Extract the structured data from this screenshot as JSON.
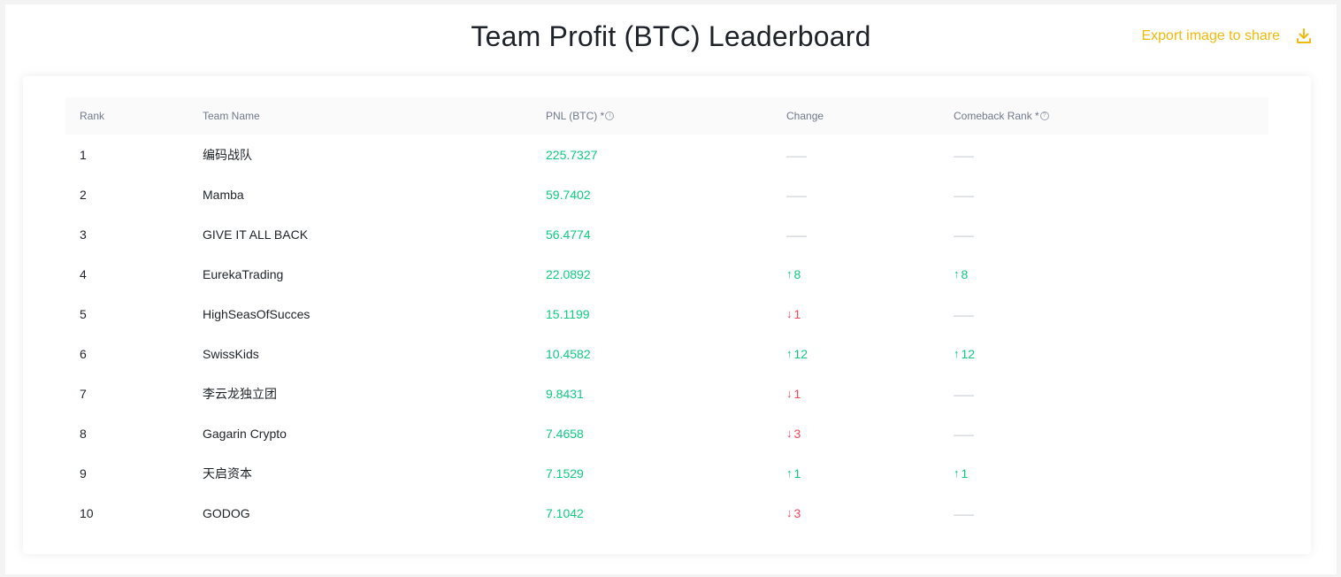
{
  "header": {
    "title": "Team Profit (BTC) Leaderboard",
    "export_label": "Export image to share"
  },
  "colors": {
    "accent": "#f0b90b",
    "positive": "#0ecb81",
    "negative": "#f6465d",
    "muted": "#b7bdc6"
  },
  "table": {
    "columns": {
      "rank": "Rank",
      "team": "Team Name",
      "pnl": "PNL (BTC) *",
      "change": "Change",
      "comeback": "Comeback Rank *"
    },
    "rows": [
      {
        "rank": "1",
        "team": "编码战队",
        "pnl": "225.7327",
        "change_dir": "none",
        "change": "——",
        "comeback_dir": "none",
        "comeback": "——"
      },
      {
        "rank": "2",
        "team": "Mamba",
        "pnl": "59.7402",
        "change_dir": "none",
        "change": "——",
        "comeback_dir": "none",
        "comeback": "——"
      },
      {
        "rank": "3",
        "team": "GIVE IT ALL BACK",
        "pnl": "56.4774",
        "change_dir": "none",
        "change": "——",
        "comeback_dir": "none",
        "comeback": "——"
      },
      {
        "rank": "4",
        "team": "EurekaTrading",
        "pnl": "22.0892",
        "change_dir": "up",
        "change": "8",
        "comeback_dir": "up",
        "comeback": "8"
      },
      {
        "rank": "5",
        "team": "HighSeasOfSucces",
        "pnl": "15.1199",
        "change_dir": "down",
        "change": "1",
        "comeback_dir": "none",
        "comeback": "——"
      },
      {
        "rank": "6",
        "team": "SwissKids",
        "pnl": "10.4582",
        "change_dir": "up",
        "change": "12",
        "comeback_dir": "up",
        "comeback": "12"
      },
      {
        "rank": "7",
        "team": "李云龙独立团",
        "pnl": "9.8431",
        "change_dir": "down",
        "change": "1",
        "comeback_dir": "none",
        "comeback": "——"
      },
      {
        "rank": "8",
        "team": "Gagarin Crypto",
        "pnl": "7.4658",
        "change_dir": "down",
        "change": "3",
        "comeback_dir": "none",
        "comeback": "——"
      },
      {
        "rank": "9",
        "team": "天启资本",
        "pnl": "7.1529",
        "change_dir": "up",
        "change": "1",
        "comeback_dir": "up",
        "comeback": "1"
      },
      {
        "rank": "10",
        "team": "GODOG",
        "pnl": "7.1042",
        "change_dir": "down",
        "change": "3",
        "comeback_dir": "none",
        "comeback": "——"
      }
    ]
  }
}
